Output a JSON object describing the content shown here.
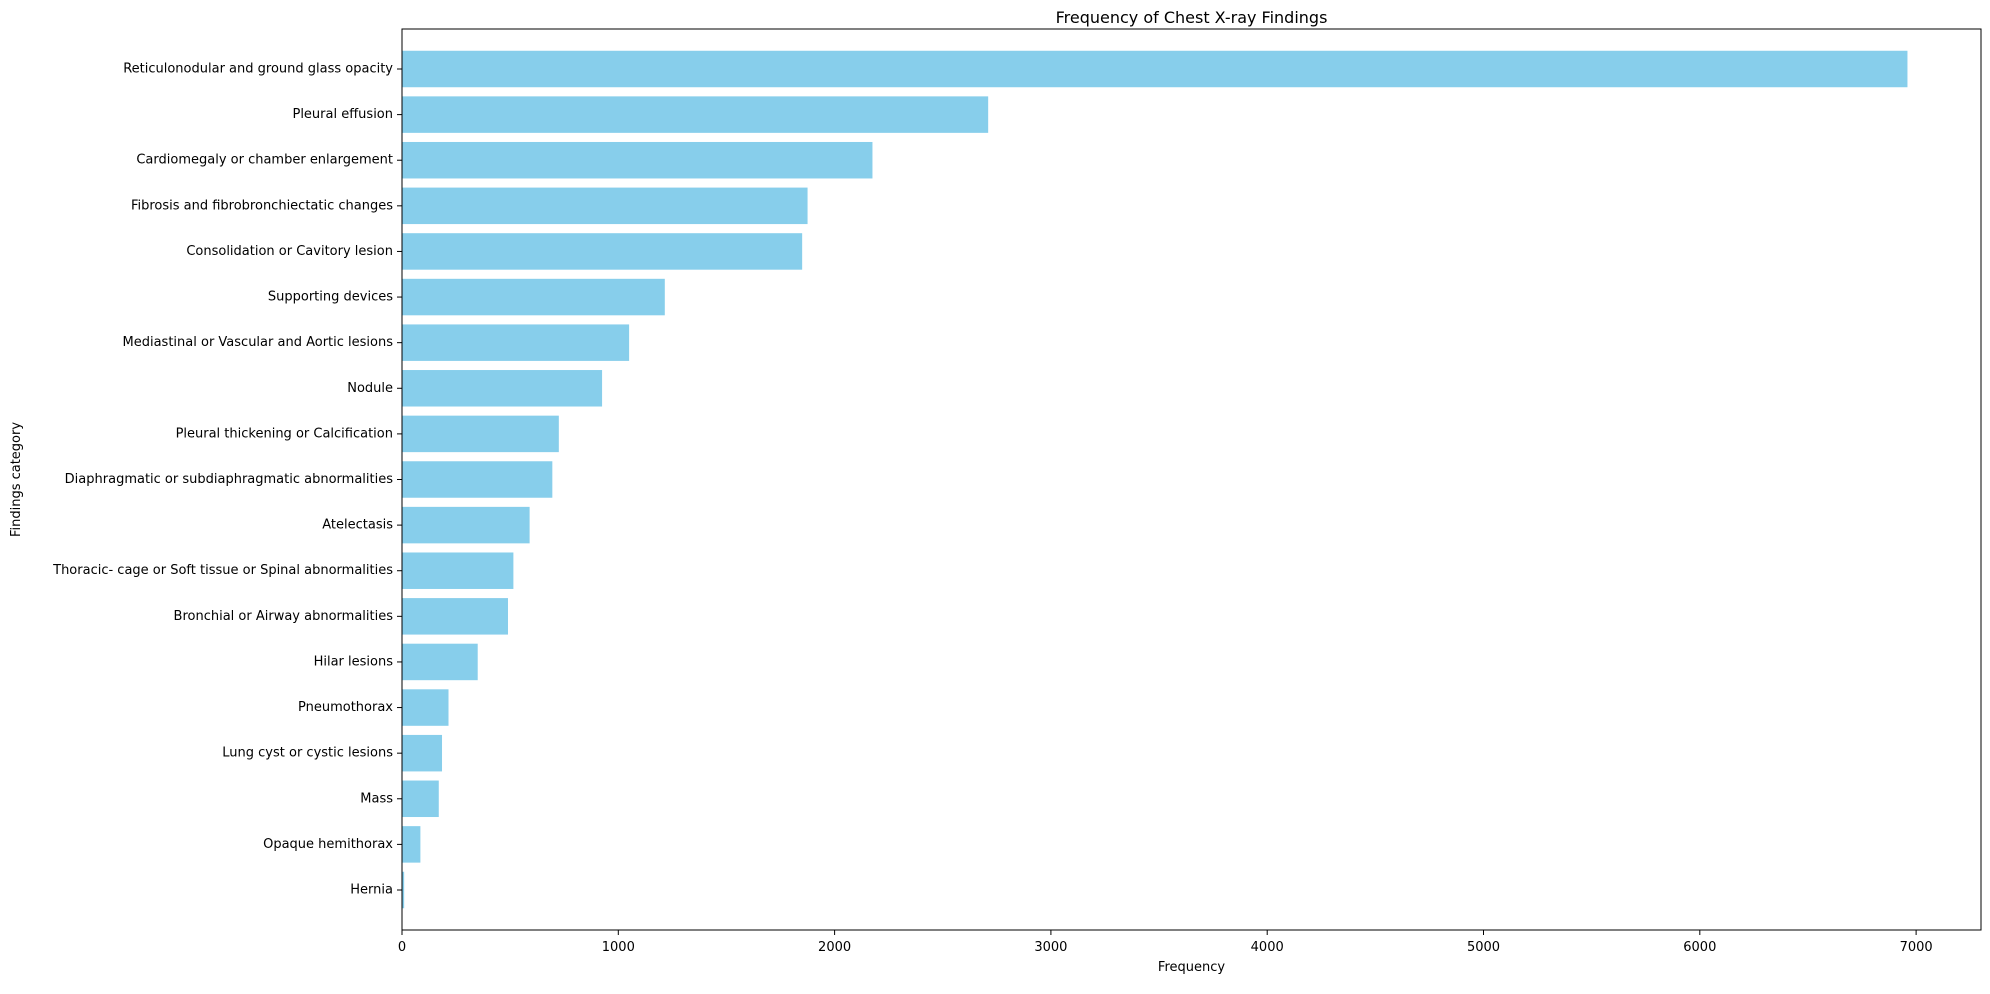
{
  "chart_data": {
    "type": "bar",
    "orientation": "horizontal",
    "title": "Frequency of Chest X-ray Findings",
    "xlabel": "Frequency",
    "ylabel": "Findings category",
    "xlim": [
      0,
      7300
    ],
    "xticks": [
      0,
      1000,
      2000,
      3000,
      4000,
      5000,
      6000,
      7000
    ],
    "xtick_labels": [
      "0",
      "1000",
      "2000",
      "3000",
      "4000",
      "5000",
      "6000",
      "7000"
    ],
    "grid": false,
    "bar_color": "#87CEEB",
    "categories": [
      "Reticulonodular and ground glass opacity",
      "Pleural effusion",
      "Cardiomegaly or chamber enlargement",
      "Fibrosis and fibrobronchiectatic changes",
      "Consolidation or Cavitory lesion",
      "Supporting devices",
      "Mediastinal or Vascular and Aortic lesions",
      "Nodule",
      "Pleural thickening or Calcification",
      "Diaphragmatic or subdiaphragmatic abnormalities",
      "Atelectasis",
      "Thoracic- cage or Soft tissue or Spinal abnormalities",
      "Bronchial or Airway abnormalities",
      "Hilar lesions",
      "Pneumothorax",
      "Lung cyst or cystic lesions",
      "Mass",
      "Opaque hemithorax",
      "Hernia"
    ],
    "values": [
      6960,
      2710,
      2175,
      1875,
      1850,
      1215,
      1050,
      925,
      725,
      695,
      590,
      515,
      490,
      350,
      215,
      185,
      170,
      85,
      10
    ]
  }
}
